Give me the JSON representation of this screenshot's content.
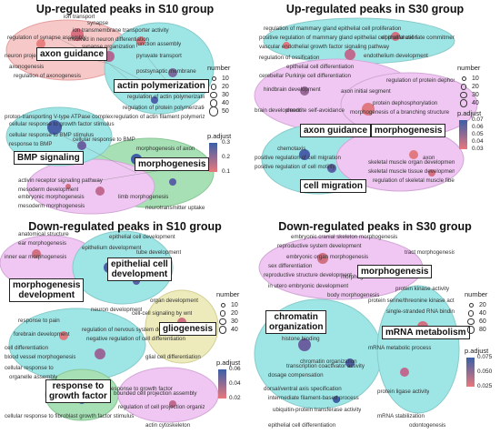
{
  "panels": [
    {
      "title": "Up-regulated peaks in S10 group",
      "labels": [
        "axon guidance",
        "actin polymerization",
        "BMP signaling",
        "morphogenesis"
      ],
      "terms": [
        "regulation of synapse assembly",
        "synapse",
        "axonogenesis",
        "regulation of axonogenesis",
        "neuron projection",
        "ion transport",
        "pyruvate transport",
        "junction assembly",
        "ion transmembrane transporter activity",
        "involved in neuron differentiation",
        "synapse organization",
        "postsynaptic membrane",
        "regulation of actin polymerization",
        "regulation of protein polymerization",
        "regulation of actin filament polymerization",
        "proton-transporting V-type ATPase complex",
        "cellular response to growth factor stimulus",
        "cellular response to BMP stimulus",
        "response to BMP",
        "cellular response to BMP",
        "activin receptor signaling pathway",
        "mesoderm development",
        "embryonic morphogenesis",
        "mesoderm morphogenesis",
        "morphogenesis of axon",
        "limb morphogenesis",
        "neurotransmitter uptake"
      ],
      "legend": {
        "size_title": "number",
        "sizes": [
          "10",
          "20",
          "30",
          "40",
          "50"
        ],
        "color_title": "p.adjust",
        "color_ticks": [
          "0.3",
          "0.2",
          "0.1"
        ]
      }
    },
    {
      "title": "Up-regulated peaks in S30 group",
      "labels": [
        "axon guidance",
        "morphogenesis",
        "cell migration"
      ],
      "terms": [
        "regulation of mammary gland epithelial cell proliferation",
        "epithelial cell fate commitment",
        "positive regulation of mammary gland epithelial cell proliferation",
        "vascular endothelial growth factor signaling pathway",
        "endothelium development",
        "regulation of ossification",
        "epithelial cell differentiation",
        "cerebellar Purkinje cell differentiation",
        "hindbrain development",
        "brain development",
        "regulation of protein dephosphorylation",
        "protein dephosphorylation",
        "morphogenesis of a branching structure",
        "dendrite self-avoidance",
        "chemotaxis",
        "positive regulation of cell migration",
        "positive regulation of cell motility",
        "skeletal muscle organ development",
        "skeletal muscle tissue development",
        "regulation of skeletal muscle fiber development",
        "axon initial segment",
        "axon"
      ],
      "legend": {
        "size_title": "number",
        "sizes": [
          "10",
          "20",
          "30",
          "40"
        ],
        "color_title": "p.adjust",
        "color_ticks": [
          "0.07",
          "0.06",
          "0.05",
          "0.04",
          "0.03"
        ]
      }
    },
    {
      "title": "Down-regulated peaks in S10 group",
      "labels": [
        "epithelial cell\ndevelopment",
        "morphogenesis\ndevelopment",
        "gliogenesis",
        "response to\ngrowth factor"
      ],
      "terms": [
        "anatomical structure",
        "ear morphogenesis",
        "inner ear morphogenesis",
        "epithelial cell development",
        "epithelium development",
        "tube development",
        "response to pain",
        "forebrain development",
        "cell differentiation",
        "blood vessel morphogenesis",
        "cellular response to",
        "response to growth factor",
        "cellular response to fibroblast growth factor stimulus",
        "cell-cell signaling by wnt",
        "regulation of nervous system development",
        "negative regulation of cell differentiation",
        "glial cell differentiation",
        "organ development",
        "actin cytoskeleton",
        "bounded cell projection assembly",
        "regulation of cell projection organization",
        "organelle assembly",
        "neuron development"
      ],
      "legend": {
        "size_title": "number",
        "sizes": [
          "10",
          "20",
          "30",
          "40"
        ],
        "color_title": "p.adjust",
        "color_ticks": [
          "0.06",
          "0.04",
          "0.02"
        ]
      }
    },
    {
      "title": "Down-regulated peaks in S30 group",
      "labels": [
        "morphogenesis",
        "chromatin\norganization",
        "mRNA metabolism"
      ],
      "terms": [
        "embryonic cranial skeleton morphogenesis",
        "tract morphogenesis",
        "reproductive system development",
        "embryonic organ morphogenesis",
        "sex differentiation",
        "morphogenesis",
        "reproductive structure development",
        "in utero embryonic development",
        "body morphogenesis",
        "protein kinase activity",
        "protein serine/threonine kinase activity",
        "single-stranded RNA binding",
        "histone binding",
        "chromatin organization",
        "transcription coactivator activity",
        "dosage compensation",
        "dorsal/ventral axis specification",
        "intermediate filament-based process",
        "ubiquitin-protein transferase activity",
        "epithelial cell differentiation",
        "mRNA metabolic process",
        "protein ligase activity",
        "mRNA stabilization",
        "odontogenesis"
      ],
      "legend": {
        "size_title": "number",
        "sizes": [
          "20",
          "40",
          "60",
          "80"
        ],
        "color_title": "p.adjust",
        "color_ticks": [
          "0.075",
          "0.050",
          "0.025"
        ]
      }
    }
  ],
  "colors": {
    "high_p": "#e8787c",
    "low_p": "#3a5fa8",
    "cluster_red": "#f19c9c",
    "cluster_cyan": "#4fd1d0",
    "cluster_green": "#5ec877",
    "cluster_purple": "#e39be8",
    "cluster_yellow": "#dfdc84"
  }
}
